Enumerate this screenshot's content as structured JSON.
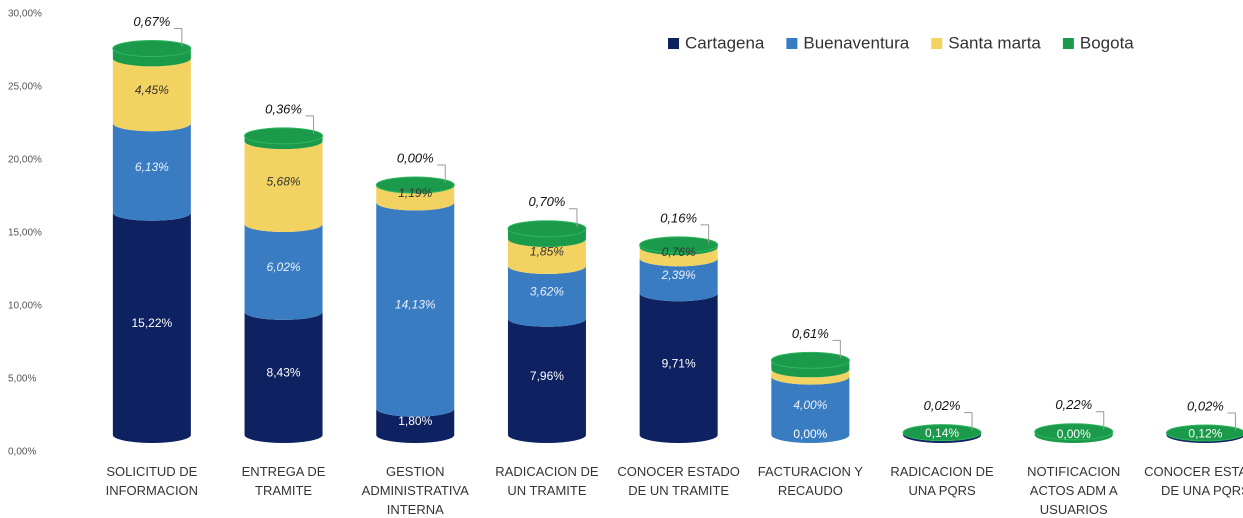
{
  "chart_data": {
    "type": "stacked_cylinder",
    "categories": [
      "SOLICITUD DE\nINFORMACION",
      "ENTREGA DE\nTRAMITE",
      "GESTION\nADMINISTRATIVA\nINTERNA",
      "RADICACION DE\nUN TRAMITE",
      "CONOCER ESTADO\nDE UN TRAMITE",
      "FACTURACION Y\nRECAUDO",
      "RADICACION DE\nUNA PQRS",
      "NOTIFICACION\nACTOS ADM A\nUSUARIOS",
      "CONOCER ESTADO\nDE UNA PQRS"
    ],
    "series": [
      {
        "name": "Cartagena",
        "color": "#0e2160",
        "values": [
          15.22,
          8.43,
          1.8,
          7.96,
          9.71,
          0.0,
          0.14,
          0.0,
          0.12
        ],
        "value_labels": [
          "15,22%",
          "8,43%",
          "1,80%",
          "7,96%",
          "9,71%",
          "0,00%",
          "0,14%",
          "0,00%",
          "0,12%"
        ]
      },
      {
        "name": "Buenaventura",
        "color": "#3a7cc2",
        "values": [
          6.13,
          6.02,
          14.13,
          3.62,
          2.39,
          4.0,
          0,
          0,
          0
        ],
        "value_labels": [
          "6,13%",
          "6,02%",
          "14,13%",
          "3,62%",
          "2,39%",
          "4,00%",
          null,
          null,
          null
        ]
      },
      {
        "name": "Santa marta",
        "color": "#f2d260",
        "values": [
          4.45,
          5.68,
          1.19,
          1.85,
          0.76,
          0.5,
          0,
          0,
          0
        ],
        "value_labels": [
          "4,45%",
          "5,68%",
          "1,19%",
          "1,85%",
          "0,76%",
          null,
          null,
          null,
          null
        ]
      },
      {
        "name": "Bogota",
        "color": "#1a9a4a",
        "values": [
          0.67,
          0.36,
          0.0,
          0.7,
          0.16,
          0.61,
          0.02,
          0.22,
          0.02
        ],
        "value_labels": [
          "0,67%",
          "0,36%",
          "0,00%",
          "0,70%",
          "0,16%",
          "0,61%",
          "0,02%",
          "0,22%",
          "0,02%"
        ]
      }
    ],
    "ylim": [
      0,
      30
    ],
    "yticks": [
      {
        "value": 0,
        "label": "0,00%"
      },
      {
        "value": 5,
        "label": "5,00%"
      },
      {
        "value": 10,
        "label": "10,00%"
      },
      {
        "value": 15,
        "label": "15,00%"
      },
      {
        "value": 20,
        "label": "20,00%"
      },
      {
        "value": 25,
        "label": "25,00%"
      },
      {
        "value": 30,
        "label": "30,00%"
      }
    ],
    "legend": "top-right"
  }
}
